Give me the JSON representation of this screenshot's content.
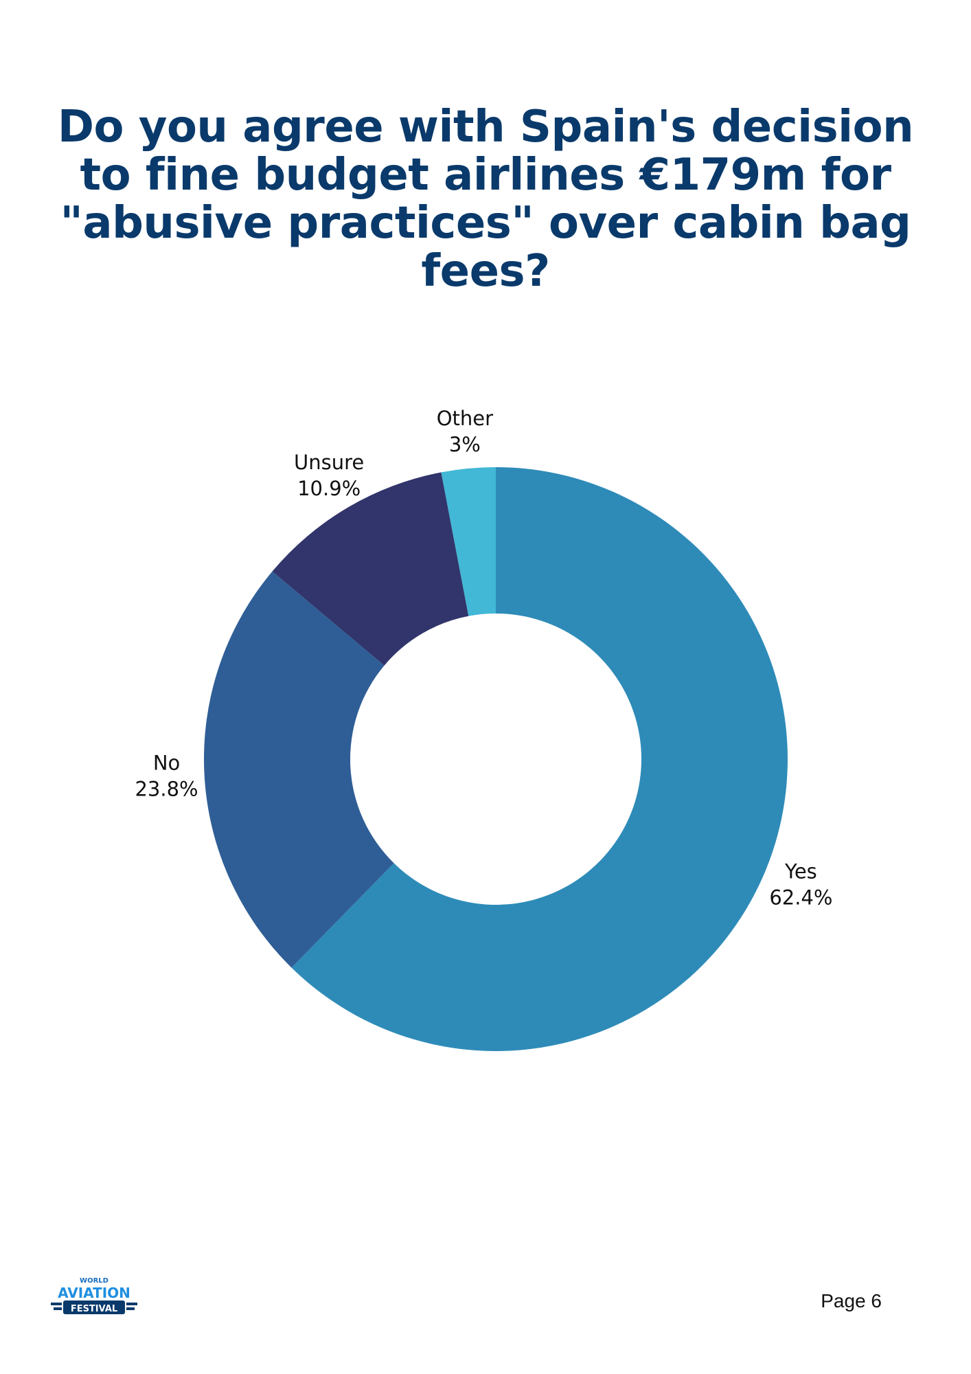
{
  "chart_data": {
    "type": "pie",
    "donut": true,
    "title": "Do you agree with Spain's decision to fine budget airlines €179m for \"abusive practices\" over cabin bag fees?",
    "slices": [
      {
        "label": "Yes",
        "value": 62.4,
        "display": "62.4%",
        "color": "#2e8bb8"
      },
      {
        "label": "No",
        "value": 23.8,
        "display": "23.8%",
        "color": "#2f5e96"
      },
      {
        "label": "Unsure",
        "value": 10.9,
        "display": "10.9%",
        "color": "#31356b"
      },
      {
        "label": "Other",
        "value": 3,
        "display": "3%",
        "color": "#42b7d6"
      }
    ]
  },
  "footer": {
    "logo": {
      "top": "WORLD",
      "middle": "AVIATION",
      "bottom": "FESTIVAL"
    },
    "page": "Page 6"
  }
}
